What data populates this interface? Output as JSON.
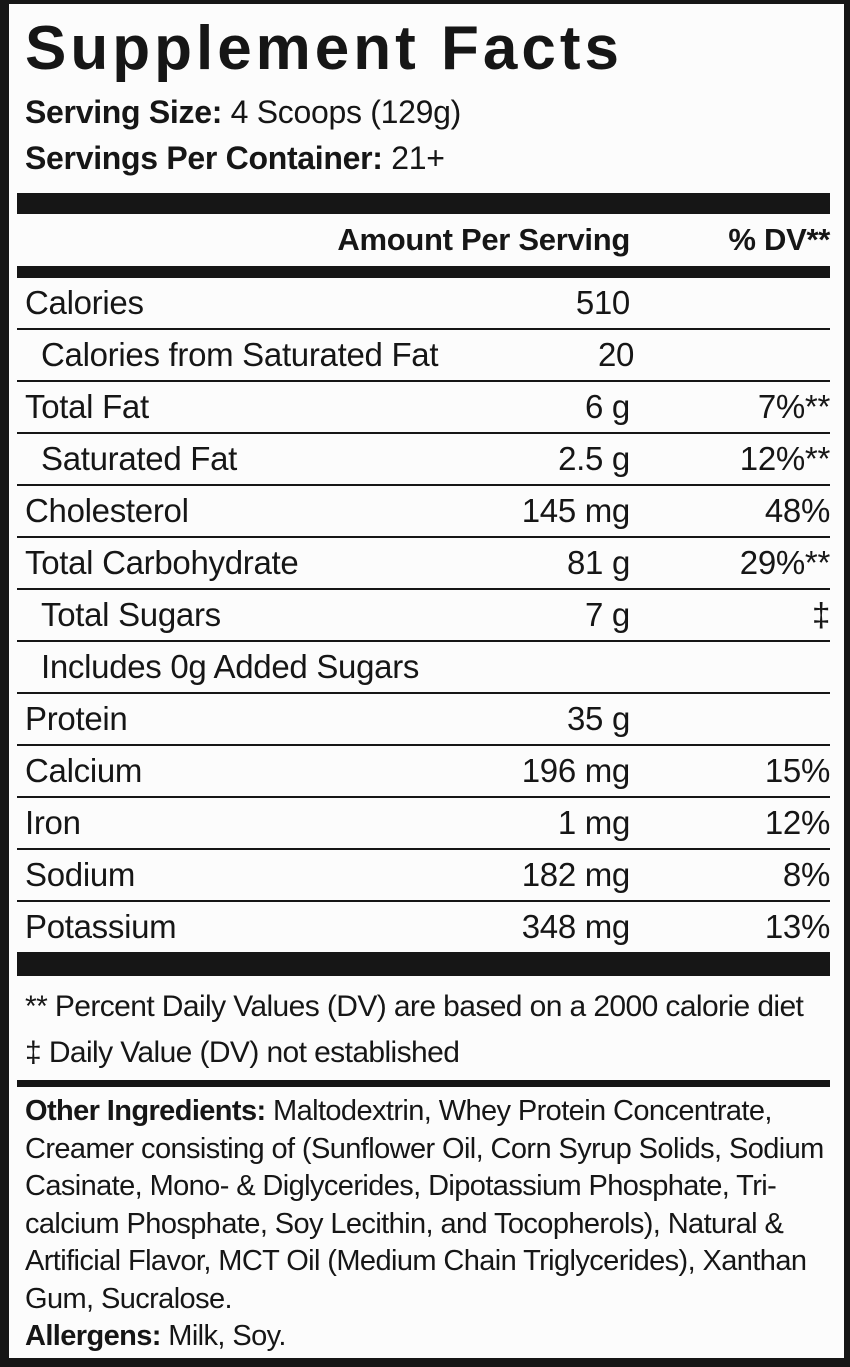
{
  "label": {
    "title": "Supplement Facts",
    "serving_size_label": "Serving Size:",
    "serving_size_value": " 4 Scoops (129g)",
    "servings_label": "Servings Per Container:",
    "servings_value": " 21+"
  },
  "table": {
    "amount_header": "Amount Per Serving",
    "dv_header": "% DV**",
    "rows": [
      {
        "name": "Calories",
        "amount": "510",
        "dv": ""
      },
      {
        "name": "Calories from Saturated Fat",
        "amount": "20",
        "dv": ""
      },
      {
        "name": "Total Fat",
        "amount": "6 g",
        "dv": "7%**"
      },
      {
        "name": "Saturated Fat",
        "amount": "2.5 g",
        "dv": "12%**"
      },
      {
        "name": "Cholesterol",
        "amount": "145 mg",
        "dv": "48%"
      },
      {
        "name": "Total Carbohydrate",
        "amount": "81 g",
        "dv": "29%**"
      },
      {
        "name": "Total Sugars",
        "amount": "7 g",
        "dv": "‡"
      },
      {
        "name": "Includes 0g Added Sugars",
        "amount": "",
        "dv": ""
      },
      {
        "name": "Protein",
        "amount": "35 g",
        "dv": ""
      },
      {
        "name": "Calcium",
        "amount": "196 mg",
        "dv": "15%"
      },
      {
        "name": "Iron",
        "amount": "1 mg",
        "dv": "12%"
      },
      {
        "name": "Sodium",
        "amount": "182 mg",
        "dv": "8%"
      },
      {
        "name": "Potassium",
        "amount": "348 mg",
        "dv": "13%"
      }
    ]
  },
  "footnotes": {
    "dv_note": "** Percent Daily Values (DV) are based on a 2000 calorie diet",
    "dagger_note": "‡ Daily Value (DV) not established"
  },
  "other_ingredients": {
    "label": "Other Ingredients:",
    "text": " Maltodextrin, Whey Protein Concentrate, Creamer consisting of (Sunflower Oil, Corn Syrup Solids, Sodium Casinate, Mono- & Diglycerides, Dipotassium Phosphate, Tri-calcium Phosphate, Soy Lecithin, and Tocopherols), Natural & Artificial Flavor, MCT Oil (Medium Chain Triglycerides), Xanthan Gum, Sucralose."
  },
  "allergens": {
    "label": "Allergens:",
    "text": " Milk, Soy."
  },
  "colors": {
    "ink": "#161616",
    "background": "#fcfcfc"
  }
}
